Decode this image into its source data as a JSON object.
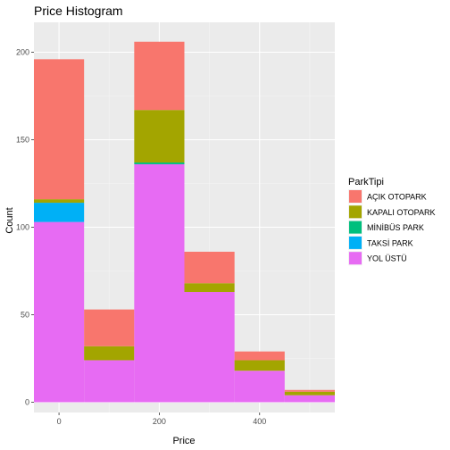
{
  "chart_data": {
    "type": "bar",
    "stacked": true,
    "title": "Price Histogram",
    "xlabel": "Price",
    "ylabel": "Count",
    "bin_width": 100,
    "bin_centers": [
      0,
      100,
      200,
      300,
      400,
      500
    ],
    "xlim": [
      -50,
      550
    ],
    "ylim": [
      0,
      206
    ],
    "x_ticks": [
      0,
      200,
      400
    ],
    "y_ticks": [
      0,
      50,
      100,
      150,
      200
    ],
    "grid": true,
    "legend": {
      "title": "ParkTipi",
      "position": "right"
    },
    "series": [
      {
        "name": "YOL ÜSTÜ",
        "color": "#E76BF3",
        "values": [
          103,
          24,
          136,
          63,
          18,
          4
        ]
      },
      {
        "name": "TAKSİ PARK",
        "color": "#00B0F6",
        "values": [
          11,
          0,
          0,
          0,
          0,
          0
        ]
      },
      {
        "name": "MİNİBÜS PARK",
        "color": "#00BF7D",
        "values": [
          0,
          0,
          1,
          0,
          0,
          0
        ]
      },
      {
        "name": "KAPALI OTOPARK",
        "color": "#A3A500",
        "values": [
          2,
          8,
          30,
          5,
          6,
          2
        ]
      },
      {
        "name": "AÇIK OTOPARK",
        "color": "#F8766D",
        "values": [
          80,
          21,
          39,
          18,
          5,
          1
        ]
      }
    ],
    "legend_order": [
      "AÇIK OTOPARK",
      "KAPALI OTOPARK",
      "MİNİBÜS PARK",
      "TAKSİ PARK",
      "YOL ÜSTÜ"
    ]
  }
}
